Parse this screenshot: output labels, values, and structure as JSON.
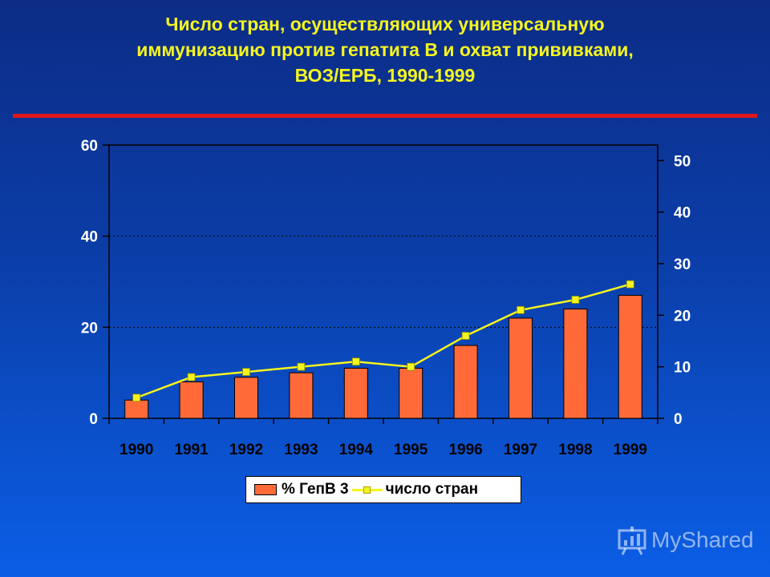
{
  "title_lines": [
    "Число стран, осуществляющих универсальную",
    "иммунизацию против гепатита В и охват прививками,",
    "ВОЗ/ЕРБ, 1990-1999"
  ],
  "colors": {
    "bar": "#ff6a38",
    "line": "#f5f51e",
    "title": "#f5f51e",
    "accent_line": "#e0181b"
  },
  "watermark": {
    "text": "MyShared",
    "icon": "presentation-board-icon"
  },
  "legend": {
    "bar_label": "% ГепВ 3",
    "line_label": "число стран"
  },
  "chart_data": {
    "type": "bar",
    "categories": [
      "1990",
      "1991",
      "1992",
      "1993",
      "1994",
      "1995",
      "1996",
      "1997",
      "1998",
      "1999"
    ],
    "series": [
      {
        "name": "% ГепВ 3",
        "type": "bar",
        "axis": "left",
        "values": [
          4,
          8,
          9,
          10,
          11,
          11,
          16,
          22,
          24,
          27
        ]
      },
      {
        "name": "число стран",
        "type": "line",
        "axis": "right",
        "values": [
          4,
          8,
          9,
          10,
          11,
          10,
          16,
          21,
          23,
          26
        ]
      }
    ],
    "y_left": {
      "lim": [
        0,
        60
      ],
      "ticks": [
        "0",
        "20",
        "40",
        "60"
      ]
    },
    "y_right": {
      "lim": [
        0,
        53
      ],
      "ticks": [
        "0",
        "10",
        "20",
        "30",
        "40",
        "50"
      ]
    },
    "grid": "dotted horizontal at left-axis ticks",
    "legend_position": "bottom"
  }
}
